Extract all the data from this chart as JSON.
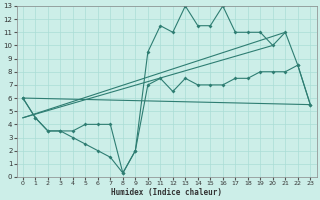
{
  "xlabel": "Humidex (Indice chaleur)",
  "bg_color": "#cceee8",
  "grid_color": "#aaddd6",
  "line_color": "#2e7d72",
  "xlim": [
    -0.5,
    23.5
  ],
  "ylim": [
    0,
    13
  ],
  "xticks": [
    0,
    1,
    2,
    3,
    4,
    5,
    6,
    7,
    8,
    9,
    10,
    11,
    12,
    13,
    14,
    15,
    16,
    17,
    18,
    19,
    20,
    21,
    22,
    23
  ],
  "yticks": [
    0,
    1,
    2,
    3,
    4,
    5,
    6,
    7,
    8,
    9,
    10,
    11,
    12,
    13
  ],
  "series1_x": [
    0,
    1,
    2,
    3,
    4,
    5,
    6,
    7,
    8,
    9,
    10,
    11,
    12,
    13,
    14,
    15,
    16,
    17,
    18,
    19,
    20,
    21,
    22,
    23
  ],
  "series1_y": [
    6.0,
    4.5,
    3.5,
    3.5,
    3.0,
    2.5,
    2.0,
    1.5,
    0.3,
    2.0,
    9.5,
    11.5,
    11.0,
    13.0,
    11.5,
    11.5,
    13.0,
    11.0,
    11.0,
    11.0,
    10.0,
    11.0,
    8.5,
    5.5
  ],
  "series2_x": [
    0,
    1,
    2,
    3,
    4,
    5,
    6,
    7,
    8,
    9,
    10,
    11,
    12,
    13,
    14,
    15,
    16,
    17,
    18,
    19,
    20,
    21,
    22,
    23
  ],
  "series2_y": [
    6.0,
    4.5,
    3.5,
    3.5,
    3.5,
    4.0,
    4.0,
    4.0,
    0.3,
    2.0,
    7.0,
    7.5,
    6.5,
    7.5,
    7.0,
    7.0,
    7.0,
    7.5,
    7.5,
    8.0,
    8.0,
    8.0,
    8.5,
    5.5
  ],
  "series3_x": [
    0,
    23
  ],
  "series3_y": [
    6.0,
    5.5
  ],
  "series4_x": [
    0,
    21
  ],
  "series4_y": [
    4.5,
    11.0
  ],
  "series5_x": [
    0,
    20
  ],
  "series5_y": [
    4.5,
    10.0
  ]
}
